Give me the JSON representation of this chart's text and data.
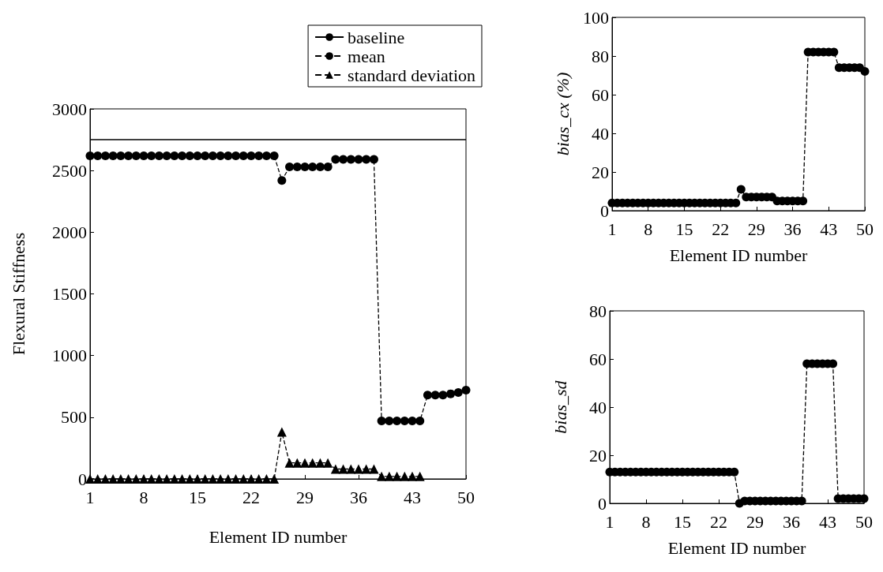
{
  "chart_data": [
    {
      "type": "line",
      "xlabel": "Element ID number",
      "ylabel": "Flexural Stiffness",
      "legend": "top right",
      "xlim": [
        1,
        50
      ],
      "xticks": [
        1,
        8,
        15,
        22,
        29,
        36,
        43,
        50
      ],
      "ylim": [
        0,
        3000
      ],
      "yticks": [
        0,
        500,
        1000,
        1500,
        2000,
        2500,
        3000
      ],
      "x": [
        1,
        2,
        3,
        4,
        5,
        6,
        7,
        8,
        9,
        10,
        11,
        12,
        13,
        14,
        15,
        16,
        17,
        18,
        19,
        20,
        21,
        22,
        23,
        24,
        25,
        26,
        27,
        28,
        29,
        30,
        31,
        32,
        33,
        34,
        35,
        36,
        37,
        38,
        39,
        40,
        41,
        42,
        43,
        44,
        45,
        46,
        47,
        48,
        49,
        50
      ],
      "series": [
        {
          "name": "baseline",
          "color": "#000000",
          "marker": "none",
          "line_style": "solid",
          "x": [
            1,
            50
          ],
          "values": [
            2750,
            2750
          ]
        },
        {
          "name": "mean",
          "color": "#000000",
          "marker": "circle",
          "line_style": "dashed",
          "values": [
            2620,
            2620,
            2620,
            2620,
            2620,
            2620,
            2620,
            2620,
            2620,
            2620,
            2620,
            2620,
            2620,
            2620,
            2620,
            2620,
            2620,
            2620,
            2620,
            2620,
            2620,
            2620,
            2620,
            2620,
            2620,
            2420,
            2530,
            2530,
            2530,
            2530,
            2530,
            2530,
            2590,
            2590,
            2590,
            2590,
            2590,
            2590,
            470,
            470,
            470,
            470,
            470,
            470,
            680,
            680,
            680,
            690,
            700,
            720
          ]
        },
        {
          "name": "standard deviation",
          "color": "#000000",
          "marker": "triangle",
          "line_style": "dashed",
          "values": [
            0,
            0,
            0,
            0,
            0,
            0,
            0,
            0,
            0,
            0,
            0,
            0,
            0,
            0,
            0,
            0,
            0,
            0,
            0,
            0,
            0,
            0,
            0,
            0,
            0,
            380,
            130,
            130,
            130,
            130,
            130,
            130,
            80,
            80,
            80,
            80,
            80,
            80,
            20,
            20,
            20,
            20,
            20,
            20,
            null,
            null,
            null,
            null,
            null,
            null
          ]
        }
      ]
    },
    {
      "type": "line",
      "xlabel": "Element ID number",
      "ylabel": "bias_cx (%)",
      "xlim": [
        1,
        50
      ],
      "xticks": [
        1,
        8,
        15,
        22,
        29,
        36,
        43,
        50
      ],
      "ylim": [
        0,
        100
      ],
      "yticks": [
        0,
        20,
        40,
        60,
        80,
        100
      ],
      "x": [
        1,
        2,
        3,
        4,
        5,
        6,
        7,
        8,
        9,
        10,
        11,
        12,
        13,
        14,
        15,
        16,
        17,
        18,
        19,
        20,
        21,
        22,
        23,
        24,
        25,
        26,
        27,
        28,
        29,
        30,
        31,
        32,
        33,
        34,
        35,
        36,
        37,
        38,
        39,
        40,
        41,
        42,
        43,
        44,
        45,
        46,
        47,
        48,
        49,
        50
      ],
      "series": [
        {
          "color": "#000000",
          "marker": "circle",
          "line_style": "dashed",
          "values": [
            4,
            4,
            4,
            4,
            4,
            4,
            4,
            4,
            4,
            4,
            4,
            4,
            4,
            4,
            4,
            4,
            4,
            4,
            4,
            4,
            4,
            4,
            4,
            4,
            4,
            11,
            7,
            7,
            7,
            7,
            7,
            7,
            5,
            5,
            5,
            5,
            5,
            5,
            82,
            82,
            82,
            82,
            82,
            82,
            74,
            74,
            74,
            74,
            74,
            72
          ]
        }
      ]
    },
    {
      "type": "line",
      "xlabel": "Element ID number",
      "ylabel": "bias_sd",
      "xlim": [
        1,
        50
      ],
      "xticks": [
        1,
        8,
        15,
        22,
        29,
        36,
        43,
        50
      ],
      "ylim": [
        0,
        80
      ],
      "yticks": [
        0,
        20,
        40,
        60,
        80
      ],
      "x": [
        1,
        2,
        3,
        4,
        5,
        6,
        7,
        8,
        9,
        10,
        11,
        12,
        13,
        14,
        15,
        16,
        17,
        18,
        19,
        20,
        21,
        22,
        23,
        24,
        25,
        26,
        27,
        28,
        29,
        30,
        31,
        32,
        33,
        34,
        35,
        36,
        37,
        38,
        39,
        40,
        41,
        42,
        43,
        44,
        45,
        46,
        47,
        48,
        49,
        50
      ],
      "series": [
        {
          "color": "#000000",
          "marker": "circle",
          "line_style": "dashed",
          "values": [
            13,
            13,
            13,
            13,
            13,
            13,
            13,
            13,
            13,
            13,
            13,
            13,
            13,
            13,
            13,
            13,
            13,
            13,
            13,
            13,
            13,
            13,
            13,
            13,
            13,
            0,
            1,
            1,
            1,
            1,
            1,
            1,
            1,
            1,
            1,
            1,
            1,
            1,
            58,
            58,
            58,
            58,
            58,
            58,
            2,
            2,
            2,
            2,
            2,
            2
          ]
        }
      ]
    }
  ]
}
